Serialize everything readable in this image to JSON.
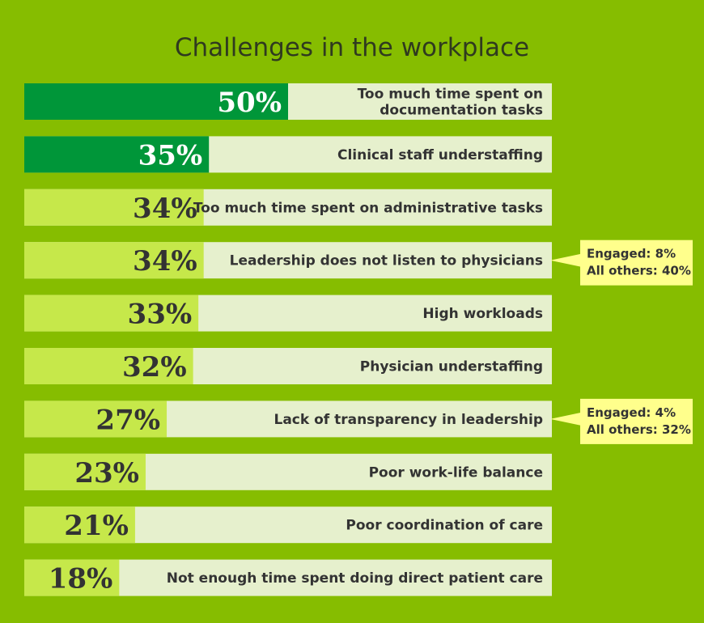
{
  "colors": {
    "background": "#86bd00",
    "track": "#e6f0cd",
    "highlight_fill": "#009639",
    "normal_fill": "#c6e84a",
    "highlight_text": "#ffffff",
    "normal_text": "#333333",
    "callout": "#ffff8c"
  },
  "chart_data": {
    "type": "bar",
    "orientation": "horizontal",
    "title": "Challenges in the workplace",
    "value_unit": "%",
    "xlim": [
      0,
      100
    ],
    "categories": [
      "Too much time spent on documentation tasks",
      "Clinical staff understaffing",
      "Too much time spent on administrative tasks",
      "Leadership does not listen to physicians",
      "High workloads",
      "Physician understaffing",
      "Lack of transparency in leadership",
      "Poor work-life balance",
      "Poor coordination of care",
      "Not enough time spent doing direct patient care"
    ],
    "values": [
      50,
      35,
      34,
      34,
      33,
      32,
      27,
      23,
      21,
      18
    ],
    "labels": [
      "50%",
      "35%",
      "34%",
      "34%",
      "33%",
      "32%",
      "27%",
      "23%",
      "21%",
      "18%"
    ],
    "highlighted": [
      true,
      true,
      false,
      false,
      false,
      false,
      false,
      false,
      false,
      false
    ],
    "category_lines": [
      [
        "Too much time spent on",
        "documentation tasks"
      ],
      [
        "Clinical staff understaffing"
      ],
      [
        "Too much time spent on administrative tasks"
      ],
      [
        "Leadership does not listen to physicians"
      ],
      [
        "High workloads"
      ],
      [
        "Physician understaffing"
      ],
      [
        "Lack of transparency in leadership"
      ],
      [
        "Poor work-life balance"
      ],
      [
        "Poor coordination of care"
      ],
      [
        "Not enough time spent doing direct patient care"
      ]
    ],
    "annotations": [
      {
        "category_index": 3,
        "lines": [
          "Engaged: 8%",
          "All others: 40%"
        ]
      },
      {
        "category_index": 6,
        "lines": [
          "Engaged: 4%",
          "All others: 32%"
        ]
      }
    ]
  }
}
